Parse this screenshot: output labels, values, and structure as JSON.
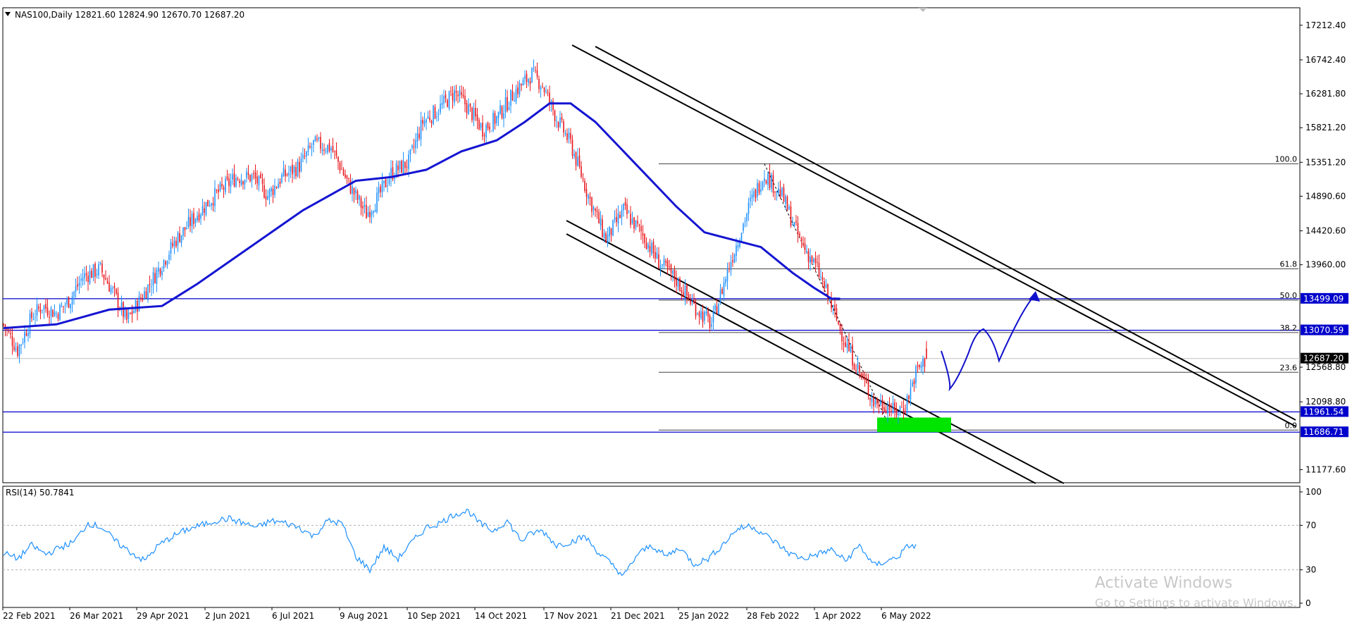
{
  "main_chart": {
    "header": "NAS100,Daily  12821.60 12824.90 12670.70 12687.20",
    "symbol_menu_icon": "triangle-down-icon",
    "price_ticks": [
      17212.4,
      16742.4,
      16281.8,
      15821.2,
      15351.2,
      14890.6,
      14420.6,
      13960.0,
      12568.8,
      12098.8,
      11177.6
    ],
    "price_range": [
      11000,
      17450
    ],
    "colors": {
      "bull": "#1e90ff",
      "bear": "#e8151b",
      "ma": "#1414d2",
      "level": "#0000cc",
      "channel": "#000000",
      "zone": "#00e500",
      "arrow": "#1010cc",
      "price_tag": "#000000"
    }
  },
  "chart_data": {
    "type": "candlestick",
    "symbol": "NAS100",
    "timeframe": "Daily",
    "ohlc_last": {
      "open": 12821.6,
      "high": 12824.9,
      "low": 12670.7,
      "close": 12687.2
    },
    "x_labels": [
      "22 Feb 2021",
      "26 Mar 2021",
      "29 Apr 2021",
      "2 Jun 2021",
      "6 Jul 2021",
      "9 Aug 2021",
      "10 Sep 2021",
      "14 Oct 2021",
      "17 Nov 2021",
      "21 Dec 2021",
      "25 Jan 2022",
      "28 Feb 2022",
      "1 Apr 2022",
      "6 May 2022"
    ],
    "close_path": [
      [
        0,
        13150
      ],
      [
        8,
        12800
      ],
      [
        16,
        13250
      ],
      [
        22,
        13400
      ],
      [
        30,
        13300
      ],
      [
        38,
        13500
      ],
      [
        45,
        13800
      ],
      [
        55,
        13900
      ],
      [
        63,
        13550
      ],
      [
        70,
        13200
      ],
      [
        78,
        13500
      ],
      [
        88,
        13900
      ],
      [
        98,
        14300
      ],
      [
        110,
        14650
      ],
      [
        120,
        14900
      ],
      [
        132,
        15150
      ],
      [
        142,
        15150
      ],
      [
        150,
        14900
      ],
      [
        158,
        15150
      ],
      [
        168,
        15300
      ],
      [
        176,
        15600
      ],
      [
        186,
        15550
      ],
      [
        196,
        15050
      ],
      [
        206,
        14650
      ],
      [
        212,
        14850
      ],
      [
        220,
        15200
      ],
      [
        230,
        15350
      ],
      [
        238,
        15900
      ],
      [
        246,
        16050
      ],
      [
        256,
        16300
      ],
      [
        262,
        16150
      ],
      [
        272,
        15800
      ],
      [
        280,
        15950
      ],
      [
        290,
        16300
      ],
      [
        300,
        16550
      ],
      [
        306,
        16400
      ],
      [
        314,
        15950
      ],
      [
        322,
        15600
      ],
      [
        332,
        14900
      ],
      [
        342,
        14300
      ],
      [
        352,
        14700
      ],
      [
        362,
        14400
      ],
      [
        372,
        14000
      ],
      [
        382,
        13750
      ],
      [
        392,
        13400
      ],
      [
        402,
        13150
      ],
      [
        412,
        13950
      ],
      [
        424,
        14800
      ],
      [
        432,
        15200
      ],
      [
        442,
        14900
      ],
      [
        452,
        14300
      ],
      [
        462,
        13900
      ],
      [
        470,
        13400
      ],
      [
        478,
        12900
      ],
      [
        488,
        12400
      ],
      [
        494,
        12100
      ],
      [
        502,
        12050
      ],
      [
        506,
        11950
      ],
      [
        512,
        12050
      ],
      [
        518,
        12500
      ],
      [
        524,
        12687.2
      ]
    ],
    "candle_count": 525,
    "levels": [
      13499.09,
      13070.59,
      11961.54,
      11686.71
    ],
    "level_labels": [
      "13499.09",
      "13070.59",
      "11961.54",
      "11686.71"
    ],
    "fib_levels": [
      {
        "label": "100.0",
        "price": 15330
      },
      {
        "label": "61.8",
        "price": 13905
      },
      {
        "label": "50.0",
        "price": 13480
      },
      {
        "label": "38.2",
        "price": 13040
      },
      {
        "label": "23.6",
        "price": 12500
      },
      {
        "label": "0.0",
        "price": 11715
      }
    ],
    "current_price": 12687.2,
    "current_price_label": "12687.20",
    "moving_average": [
      [
        0,
        13100
      ],
      [
        30,
        13150
      ],
      [
        60,
        13350
      ],
      [
        90,
        13400
      ],
      [
        110,
        13700
      ],
      [
        140,
        14200
      ],
      [
        170,
        14700
      ],
      [
        200,
        15100
      ],
      [
        220,
        15150
      ],
      [
        240,
        15250
      ],
      [
        260,
        15500
      ],
      [
        280,
        15650
      ],
      [
        296,
        15900
      ],
      [
        310,
        16150
      ],
      [
        322,
        16150
      ],
      [
        336,
        15900
      ],
      [
        350,
        15550
      ],
      [
        366,
        15150
      ],
      [
        382,
        14750
      ],
      [
        398,
        14400
      ],
      [
        414,
        14300
      ],
      [
        430,
        14200
      ],
      [
        448,
        13850
      ],
      [
        460,
        13650
      ],
      [
        470,
        13500
      ],
      [
        475,
        13499
      ]
    ]
  },
  "rsi_panel": {
    "label": "RSI(14) 50.7841",
    "ticks": [
      "100",
      "70",
      "30",
      "0"
    ],
    "levels": [
      70,
      30
    ],
    "color": "#1e90ff",
    "values": [
      [
        0,
        45
      ],
      [
        8,
        40
      ],
      [
        16,
        52
      ],
      [
        24,
        44
      ],
      [
        32,
        50
      ],
      [
        40,
        55
      ],
      [
        48,
        72
      ],
      [
        56,
        68
      ],
      [
        64,
        55
      ],
      [
        72,
        46
      ],
      [
        80,
        38
      ],
      [
        88,
        52
      ],
      [
        96,
        60
      ],
      [
        104,
        66
      ],
      [
        112,
        70
      ],
      [
        120,
        74
      ],
      [
        128,
        76
      ],
      [
        136,
        72
      ],
      [
        144,
        68
      ],
      [
        152,
        74
      ],
      [
        160,
        72
      ],
      [
        168,
        68
      ],
      [
        176,
        60
      ],
      [
        184,
        74
      ],
      [
        192,
        72
      ],
      [
        200,
        42
      ],
      [
        208,
        30
      ],
      [
        216,
        50
      ],
      [
        224,
        40
      ],
      [
        232,
        55
      ],
      [
        240,
        68
      ],
      [
        248,
        72
      ],
      [
        256,
        80
      ],
      [
        264,
        83
      ],
      [
        270,
        72
      ],
      [
        278,
        65
      ],
      [
        286,
        74
      ],
      [
        294,
        56
      ],
      [
        300,
        63
      ],
      [
        306,
        65
      ],
      [
        314,
        52
      ],
      [
        322,
        55
      ],
      [
        330,
        60
      ],
      [
        338,
        45
      ],
      [
        346,
        34
      ],
      [
        352,
        24
      ],
      [
        360,
        44
      ],
      [
        368,
        52
      ],
      [
        376,
        42
      ],
      [
        384,
        50
      ],
      [
        392,
        35
      ],
      [
        400,
        40
      ],
      [
        408,
        52
      ],
      [
        416,
        66
      ],
      [
        424,
        70
      ],
      [
        430,
        64
      ],
      [
        438,
        55
      ],
      [
        446,
        45
      ],
      [
        454,
        40
      ],
      [
        462,
        44
      ],
      [
        470,
        48
      ],
      [
        478,
        38
      ],
      [
        486,
        52
      ],
      [
        494,
        34
      ],
      [
        502,
        38
      ],
      [
        508,
        42
      ],
      [
        514,
        52
      ],
      [
        518,
        50.78
      ]
    ]
  },
  "time_axis": {
    "labels": [
      "22 Feb 2021",
      "26 Mar 2021",
      "29 Apr 2021",
      "2 Jun 2021",
      "6 Jul 2021",
      "9 Aug 2021",
      "10 Sep 2021",
      "14 Oct 2021",
      "17 Nov 2021",
      "21 Dec 2021",
      "25 Jan 2022",
      "28 Feb 2022",
      "1 Apr 2022",
      "6 May 2022"
    ]
  },
  "watermark": {
    "title": "Activate Windows",
    "subtitle": "Go to Settings to activate Windows."
  }
}
